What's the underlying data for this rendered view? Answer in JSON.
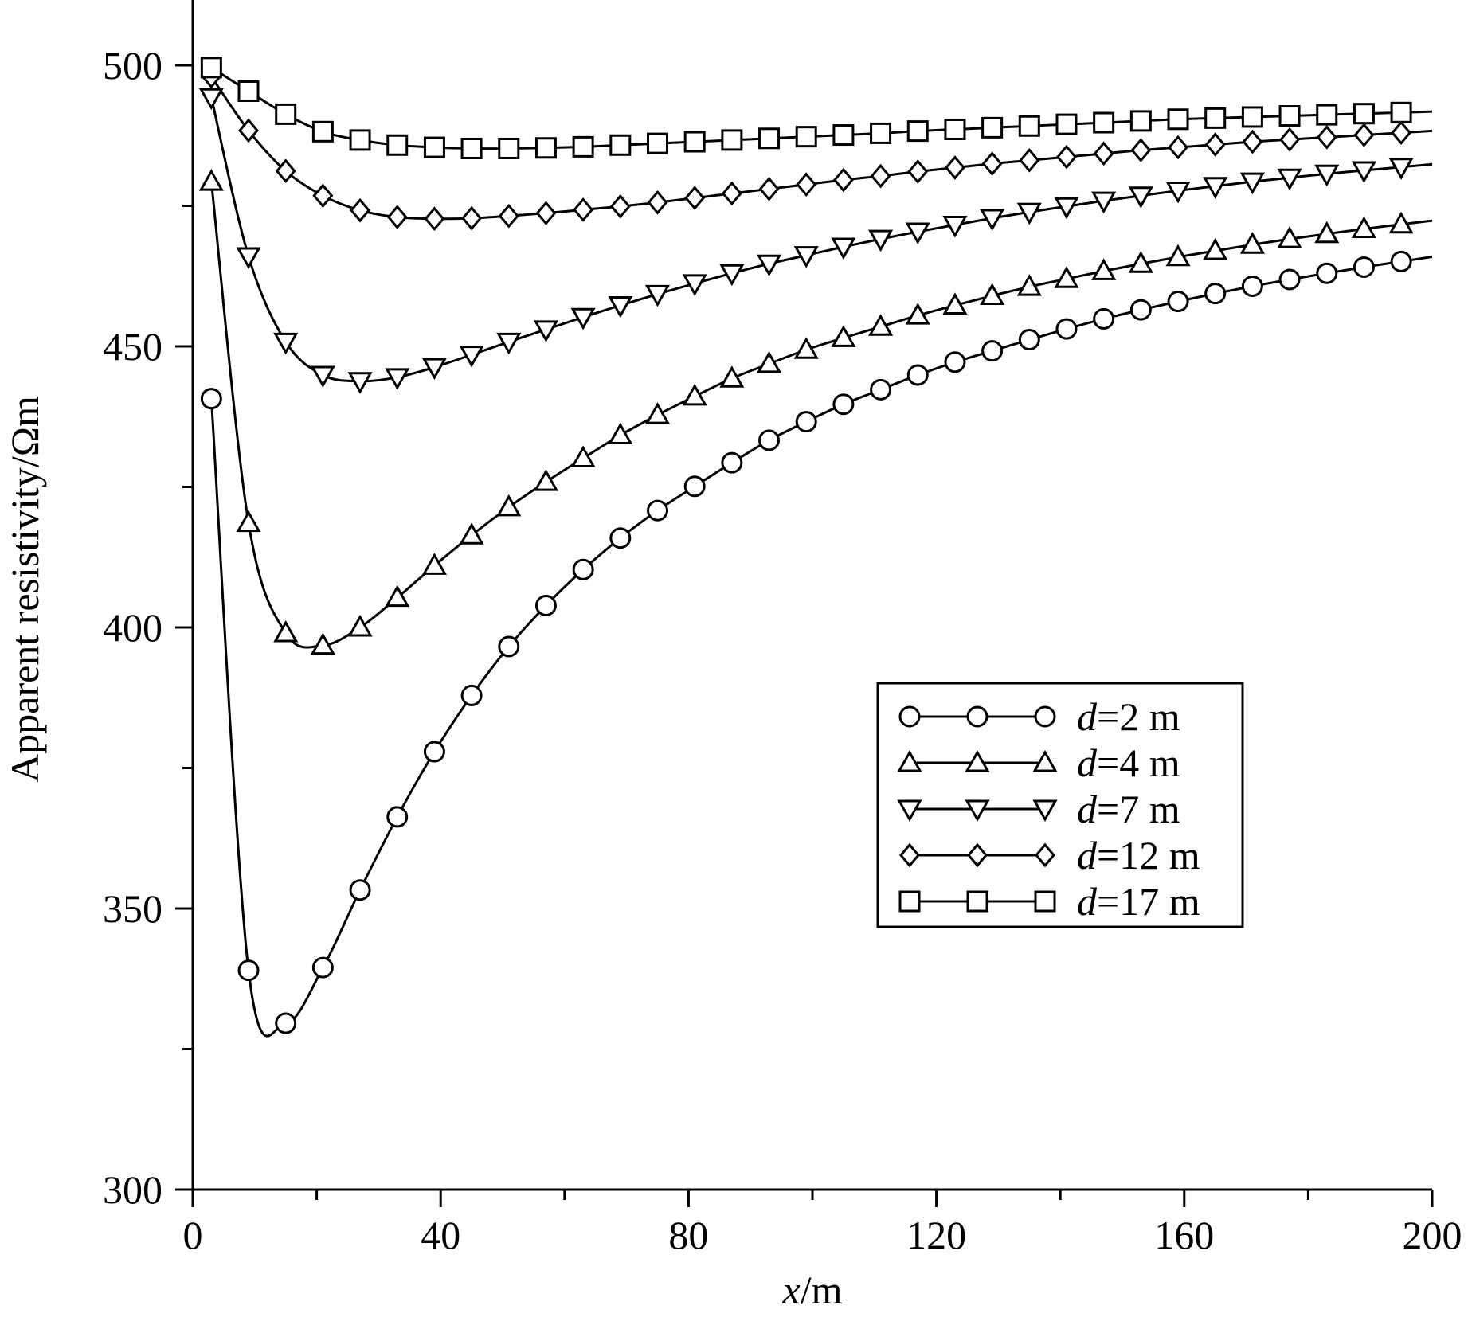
{
  "chart_data": {
    "type": "line",
    "xlabel_var": "x",
    "xlabel_unit": "/m",
    "ylabel": "Apparent resistivity/Ωm",
    "xlim": [
      0,
      200
    ],
    "ylim": [
      300,
      500
    ],
    "x_ticks": [
      "0",
      "40",
      "80",
      "120",
      "160",
      "200"
    ],
    "y_ticks": [
      "300",
      "350",
      "400",
      "450",
      "500"
    ],
    "grid": false,
    "legend_position": "lower-right",
    "colors": {
      "line": "#000000",
      "background": "#ffffff"
    },
    "x": [
      3,
      9,
      15,
      21,
      27,
      33,
      39,
      45,
      51,
      57,
      63,
      69,
      75,
      81,
      87,
      93,
      99,
      105,
      111,
      117,
      123,
      129,
      135,
      141,
      147,
      153,
      159,
      165,
      171,
      177,
      183,
      189,
      195
    ],
    "series": [
      {
        "name_var": "d",
        "name_rest": "=2 m",
        "marker": "circle",
        "values": [
          440.7,
          339.0,
          329.6,
          339.5,
          353.3,
          366.3,
          377.9,
          387.9,
          396.6,
          403.9,
          410.3,
          415.9,
          420.8,
          425.1,
          429.3,
          433.3,
          436.6,
          439.7,
          442.3,
          444.9,
          447.2,
          449.2,
          451.2,
          453.1,
          454.9,
          456.5,
          458.0,
          459.4,
          460.7,
          461.9,
          463.0,
          464.1,
          465.1
        ]
      },
      {
        "name_var": "d",
        "name_rest": "=4 m",
        "marker": "triangle-up",
        "values": [
          479.3,
          418.6,
          399.0,
          396.8,
          400.0,
          405.3,
          411.0,
          416.4,
          421.4,
          425.9,
          430.1,
          434.2,
          437.8,
          441.1,
          444.3,
          446.9,
          449.4,
          451.5,
          453.5,
          455.5,
          457.3,
          459.0,
          460.6,
          462.0,
          463.4,
          464.7,
          465.9,
          467.0,
          468.1,
          469.1,
          470.0,
          470.9,
          471.7
        ]
      },
      {
        "name_var": "d",
        "name_rest": "=7 m",
        "marker": "triangle-down",
        "values": [
          494.3,
          466.0,
          450.8,
          444.9,
          443.8,
          444.5,
          446.3,
          448.5,
          450.8,
          453.0,
          455.2,
          457.3,
          459.3,
          461.2,
          463.0,
          464.7,
          466.2,
          467.7,
          469.1,
          470.4,
          471.6,
          472.8,
          473.9,
          474.9,
          475.9,
          476.8,
          477.7,
          478.5,
          479.3,
          480.0,
          480.7,
          481.3,
          481.9
        ]
      },
      {
        "name_var": "d",
        "name_rest": "=12 m",
        "marker": "diamond",
        "values": [
          498.0,
          488.4,
          481.2,
          476.8,
          474.2,
          473.0,
          472.7,
          472.8,
          473.2,
          473.7,
          474.3,
          474.9,
          475.6,
          476.4,
          477.2,
          478.0,
          478.8,
          479.6,
          480.3,
          481.1,
          481.8,
          482.5,
          483.1,
          483.7,
          484.3,
          484.9,
          485.4,
          485.9,
          486.4,
          486.8,
          487.2,
          487.6,
          488.0
        ]
      },
      {
        "name_var": "d",
        "name_rest": "=17 m",
        "marker": "square",
        "values": [
          499.6,
          495.4,
          491.3,
          488.2,
          486.7,
          485.8,
          485.4,
          485.2,
          485.2,
          485.3,
          485.5,
          485.8,
          486.1,
          486.4,
          486.7,
          487.0,
          487.3,
          487.6,
          487.9,
          488.3,
          488.6,
          488.9,
          489.2,
          489.5,
          489.8,
          490.1,
          490.4,
          490.6,
          490.8,
          491.0,
          491.2,
          491.4,
          491.6
        ]
      }
    ]
  }
}
